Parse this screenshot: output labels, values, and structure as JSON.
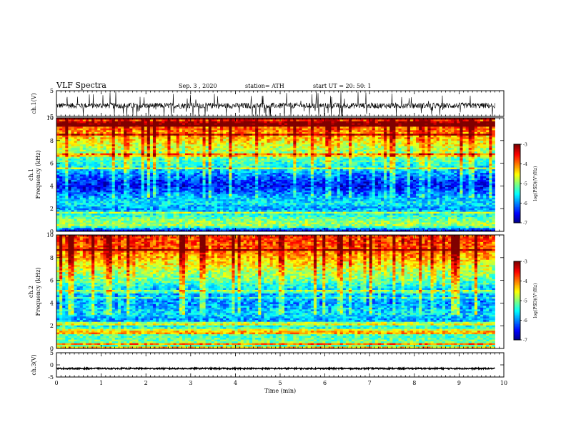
{
  "header": {
    "title": "VLF Spectra",
    "date": "Sep. 3 , 2020",
    "station": "station= ATH",
    "start": "start  UT =   20: 50: 1"
  },
  "chart_data": {
    "type": "heatmap",
    "x_axis": {
      "label": "Time (min)",
      "range": [
        0,
        10
      ],
      "ticks": [
        "0",
        "1",
        "2",
        "3",
        "4",
        "5",
        "6",
        "7",
        "8",
        "9",
        "10"
      ],
      "data_end": 9.8
    },
    "panels": [
      {
        "id": "ch1-waveform",
        "type": "line",
        "ylabel": "ch.1(V)",
        "ylim": [
          -5,
          5
        ],
        "yticks": [
          "5",
          "-5"
        ],
        "description_level": "noisy signal around -1 V, spikes to +5 and -5",
        "mean_v": -0.8
      },
      {
        "id": "ch1-spectrogram",
        "type": "heatmap",
        "ylabel_top": "ch.1",
        "ylabel": "Frequency (kHz)",
        "ylim": [
          0,
          10
        ],
        "yticks": [
          "0",
          "2",
          "4",
          "6",
          "8",
          "10"
        ],
        "colorbar": {
          "label": "log(PSD)(V²/Hz)",
          "range": [
            -7,
            -3
          ],
          "ticks": [
            "-3",
            "-4",
            "-5",
            "-6",
            "-7"
          ]
        },
        "profile_log_psd": [
          {
            "f_khz": 0.0,
            "value": -6.8
          },
          {
            "f_khz": 0.5,
            "value": -4.8
          },
          {
            "f_khz": 1.0,
            "value": -5.0
          },
          {
            "f_khz": 1.5,
            "value": -5.4
          },
          {
            "f_khz": 2.0,
            "value": -5.9
          },
          {
            "f_khz": 2.5,
            "value": -5.5
          },
          {
            "f_khz": 3.0,
            "value": -5.8
          },
          {
            "f_khz": 4.0,
            "value": -6.5
          },
          {
            "f_khz": 5.0,
            "value": -6.0
          },
          {
            "f_khz": 6.0,
            "value": -5.3
          },
          {
            "f_khz": 7.0,
            "value": -4.9
          },
          {
            "f_khz": 8.0,
            "value": -4.4
          },
          {
            "f_khz": 9.0,
            "value": -3.9
          },
          {
            "f_khz": 10.0,
            "value": -3.6
          }
        ]
      },
      {
        "id": "ch2-spectrogram",
        "type": "heatmap",
        "ylabel_top": "ch.2",
        "ylabel": "Frequency (kHz)",
        "ylim": [
          0,
          10
        ],
        "yticks": [
          "0",
          "2",
          "4",
          "6",
          "8",
          "10"
        ],
        "colorbar": {
          "label": "log(PSD)(V²/Hz)",
          "range": [
            -7,
            -3
          ],
          "ticks": [
            "-3",
            "-4",
            "-5",
            "-6",
            "-7"
          ]
        },
        "profile_log_psd": [
          {
            "f_khz": 0.0,
            "value": -5.2
          },
          {
            "f_khz": 0.5,
            "value": -5.0
          },
          {
            "f_khz": 1.0,
            "value": -5.2
          },
          {
            "f_khz": 1.5,
            "value": -5.1
          },
          {
            "f_khz": 2.0,
            "value": -5.4
          },
          {
            "f_khz": 2.5,
            "value": -5.9
          },
          {
            "f_khz": 3.0,
            "value": -5.6
          },
          {
            "f_khz": 4.0,
            "value": -5.9
          },
          {
            "f_khz": 5.0,
            "value": -5.8
          },
          {
            "f_khz": 6.0,
            "value": -5.1
          },
          {
            "f_khz": 7.0,
            "value": -4.7
          },
          {
            "f_khz": 8.0,
            "value": -4.2
          },
          {
            "f_khz": 9.0,
            "value": -3.8
          },
          {
            "f_khz": 10.0,
            "value": -3.7
          }
        ]
      },
      {
        "id": "ch3-waveform",
        "type": "line",
        "ylabel": "ch.3(V)",
        "ylim": [
          -5,
          5
        ],
        "yticks": [
          "5",
          "0",
          "-5"
        ],
        "mean_v": -1.5
      }
    ]
  }
}
